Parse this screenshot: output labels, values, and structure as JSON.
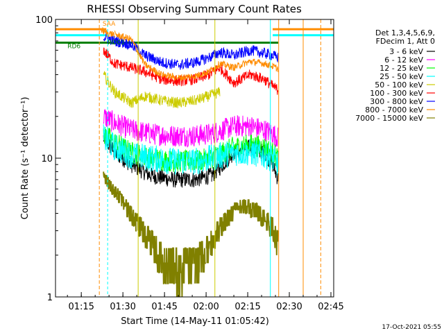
{
  "chart_data": {
    "type": "line",
    "title": "RHESSI Observing Summary Count Rates",
    "xlabel": "Start Time (14-May-11 01:05:42)",
    "ylabel": "Count Rate (s⁻¹ detector⁻¹)",
    "yscale": "log",
    "ylim": [
      1,
      100
    ],
    "xlim": [
      "01:05:42",
      "02:46:00"
    ],
    "x_ticks": [
      "01:15",
      "01:30",
      "01:45",
      "02:00",
      "02:15",
      "02:30",
      "02:45"
    ],
    "y_ticks": [
      "1",
      "10",
      "100"
    ],
    "grid": false,
    "legend_position": "right",
    "legend_header": [
      "Det 1,3,4,5,6,9,",
      "FDecim 1, Att 0"
    ],
    "footer": "17-Oct-2021 05:55",
    "annotations": [
      "SAA",
      "RD6",
      "RD01"
    ],
    "series": [
      {
        "name": "3 - 6 keV",
        "color": "#000000",
        "x": [
          "01:23",
          "01:27",
          "01:33",
          "01:40",
          "01:48",
          "01:56",
          "02:02",
          "02:06",
          "02:10",
          "02:16",
          "02:21",
          "02:24",
          "02:26"
        ],
        "y": [
          14,
          11,
          9,
          7.5,
          7,
          7,
          7.5,
          9,
          11,
          12,
          11,
          9,
          7
        ]
      },
      {
        "name": "6 - 12 keV",
        "color": "#ff00ff",
        "x": [
          "01:23",
          "01:27",
          "01:33",
          "01:40",
          "01:48",
          "01:56",
          "02:02",
          "02:06",
          "02:10",
          "02:16",
          "02:21",
          "02:24",
          "02:26"
        ],
        "y": [
          20,
          18,
          16,
          15,
          14.5,
          14.5,
          15,
          16,
          17,
          17,
          16,
          15,
          14
        ]
      },
      {
        "name": "12 - 25 keV",
        "color": "#00ff00",
        "x": [
          "01:23",
          "01:27",
          "01:33",
          "01:40",
          "01:48",
          "01:56",
          "02:02",
          "02:06",
          "02:10",
          "02:16",
          "02:21",
          "02:24",
          "02:26"
        ],
        "y": [
          15,
          13,
          11,
          10,
          9.5,
          9.5,
          10,
          11,
          12,
          12.5,
          12,
          11,
          10
        ]
      },
      {
        "name": "25 - 50 keV",
        "color": "#00ffff",
        "x": [
          "01:23",
          "01:27",
          "01:33",
          "01:40",
          "01:48",
          "01:56",
          "02:02",
          "02:06",
          "02:10",
          "02:16",
          "02:21",
          "02:24",
          "02:26"
        ],
        "y": [
          14,
          12,
          10.5,
          10,
          9.5,
          9.5,
          10,
          10.5,
          11,
          11,
          10.5,
          10,
          9
        ]
      },
      {
        "name": "50 - 100 keV",
        "color": "#cccc00",
        "x": [
          "01:23",
          "01:27",
          "01:33",
          "01:38",
          "01:44",
          "01:50",
          "01:56",
          "02:01",
          "02:05"
        ],
        "y": [
          40,
          30,
          25,
          28,
          26,
          25,
          26,
          28,
          30
        ]
      },
      {
        "name": "100 - 300 keV",
        "color": "#ff0000",
        "x": [
          "01:23",
          "01:27",
          "01:33",
          "01:38",
          "01:44",
          "01:50",
          "01:56",
          "02:01",
          "02:05",
          "02:10",
          "02:16",
          "02:21",
          "02:24",
          "02:26"
        ],
        "y": [
          60,
          48,
          45,
          42,
          37,
          36,
          37,
          40,
          45,
          35,
          40,
          37,
          33,
          31
        ]
      },
      {
        "name": "300 - 800 keV",
        "color": "#0000ff",
        "x": [
          "01:23",
          "01:27",
          "01:33",
          "01:38",
          "01:44",
          "01:50",
          "01:56",
          "02:01",
          "02:05",
          "02:10",
          "02:16",
          "02:21",
          "02:24",
          "02:26"
        ],
        "y": [
          75,
          70,
          66,
          55,
          49,
          47,
          49,
          53,
          58,
          55,
          60,
          57,
          55,
          53
        ]
      },
      {
        "name": "800 - 7000 keV",
        "color": "#ff8c00",
        "x": [
          "01:06",
          "01:22",
          "01:24",
          "01:27",
          "01:33",
          "01:38",
          "01:44",
          "01:50",
          "01:56",
          "02:01",
          "02:05",
          "02:10",
          "02:16",
          "02:21",
          "02:24",
          "02:26",
          "02:32",
          "02:40"
        ],
        "y": [
          85,
          85,
          80,
          78,
          72,
          47,
          40,
          38,
          39,
          42,
          48,
          45,
          50,
          48,
          46,
          44,
          85,
          85
        ]
      },
      {
        "name": "7000 - 15000 keV",
        "color": "#808000",
        "x": [
          "01:23",
          "01:25",
          "01:28",
          "01:31",
          "01:35",
          "01:40",
          "01:45",
          "01:50",
          "01:56",
          "02:00",
          "02:04",
          "02:08",
          "02:13",
          "02:18",
          "02:22",
          "02:24",
          "02:26"
        ],
        "y": [
          7.5,
          6.5,
          5.5,
          4.5,
          3.5,
          2.5,
          1.8,
          1.6,
          1.7,
          2.2,
          3.0,
          3.8,
          4.6,
          4.2,
          3.5,
          3.2,
          2.4
        ]
      }
    ]
  }
}
